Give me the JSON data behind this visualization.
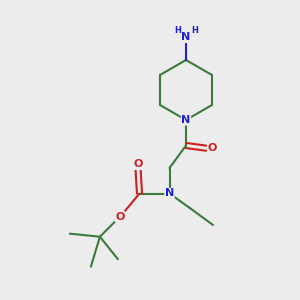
{
  "bg_color": "#ececec",
  "bond_color": "#3a7a3a",
  "nitrogen_color": "#2020cc",
  "oxygen_color": "#cc2020",
  "bond_width": 1.5,
  "font_size_atom": 8,
  "font_size_H": 6,
  "xlim": [
    0,
    10
  ],
  "ylim": [
    0,
    10
  ]
}
